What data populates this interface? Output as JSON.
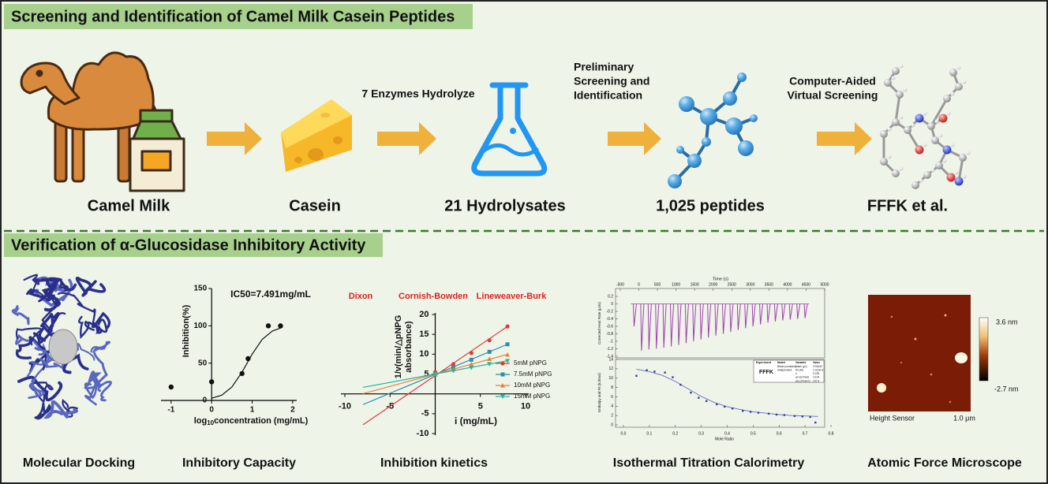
{
  "top": {
    "title": "Screening and Identification of Camel Milk Casein Peptides",
    "steps": [
      "Camel Milk",
      "Casein",
      "21 Hydrolysates",
      "1,025 peptides",
      "FFFK et al."
    ],
    "arrow_labels": [
      [
        "7 Enzymes Hydrolyze"
      ],
      [
        "Preliminary",
        "Screening and",
        "Identification"
      ],
      [
        "Computer-Aided",
        "Virtual Screening"
      ]
    ]
  },
  "bottom": {
    "title": "Verification of α-Glucosidase Inhibitory Activity",
    "panels": [
      "Molecular Docking",
      "Inhibitory Capacity",
      "Inhibition kinetics",
      "Isothermal Titration Calorimetry",
      "Atomic Force Microscope"
    ]
  },
  "inhibition_chart": {
    "type": "scatter",
    "annotation": "IC50=7.491mg/mL",
    "ylabel": "Inhibition(%)",
    "xlabel": [
      "log",
      "10",
      "concentration (mg/mL)"
    ],
    "x": [
      -1,
      0,
      0.75,
      0.9,
      1.4,
      1.7
    ],
    "values": [
      18,
      25,
      36,
      56,
      100,
      100
    ],
    "fit_x": [
      0,
      0.25,
      0.5,
      0.75,
      1,
      1.25,
      1.5,
      1.75
    ],
    "fit_values": [
      3,
      7,
      18,
      38,
      62,
      82,
      93,
      98
    ],
    "color": "#111111",
    "xlim": [
      -1.25,
      2.1
    ],
    "ylim": [
      0,
      150
    ],
    "xticks": [
      -1,
      0,
      1,
      2
    ],
    "yticks": [
      0,
      50,
      100,
      150
    ]
  },
  "kinetics_chart": {
    "type": "line",
    "method_labels": [
      "Dixon",
      "Cornish-Bowden",
      "Lineweaver-Burk"
    ],
    "method_color": "#e02020",
    "ylabel": [
      "1/v(min/△pNPG",
      "absorbance)"
    ],
    "xlabel": "i (mg/mL)",
    "xlim": [
      -10,
      10
    ],
    "ylim": [
      -10,
      20
    ],
    "xticks": [
      -10,
      -5,
      5,
      10
    ],
    "yticks": [
      -10,
      -5,
      5,
      10,
      15,
      20
    ],
    "x": [
      0,
      2,
      4,
      6,
      8
    ],
    "fit_x": [
      -8,
      8
    ],
    "series": [
      {
        "name": "5mM pNPG",
        "color": "#e53935",
        "marker": "circle",
        "values": [
          5.5,
          7.5,
          10.3,
          13.5,
          17
        ],
        "fit_values": [
          -7.8,
          17
        ]
      },
      {
        "name": "7.5mM pNPG",
        "color": "#2a8fb0",
        "marker": "square",
        "values": [
          4.9,
          6.7,
          8.6,
          10.6,
          12.5
        ],
        "fit_values": [
          -2.7,
          12.5
        ]
      },
      {
        "name": "10mM pNPG",
        "color": "#f07e3a",
        "marker": "triangle",
        "values": [
          5,
          6.2,
          7.5,
          8.8,
          9.9
        ],
        "fit_values": [
          0.04,
          9.96
        ]
      },
      {
        "name": "15mM pNPG",
        "color": "#27b59a",
        "marker": "tri-down",
        "values": [
          5,
          5.8,
          6.6,
          7.5,
          8.3
        ],
        "fit_values": [
          1.64,
          8.36
        ]
      }
    ]
  },
  "itc_chart": {
    "type": "line",
    "top": {
      "xlabel": "Time (s)",
      "ylabel": "Corrected Heat Rate (μJ/s)",
      "xlim": [
        -500,
        5000
      ],
      "ylim": [
        -1.4,
        0.2
      ],
      "xticks": [
        -500,
        0,
        500,
        1000,
        1500,
        2000,
        2500,
        3000,
        3500,
        4000,
        4500,
        5000
      ],
      "yticks": [
        0.2,
        0,
        -0.2,
        -0.4,
        -0.6,
        -0.8,
        -1,
        -1.2,
        -1.4
      ],
      "color": "#a040b0",
      "x": [
        -150,
        50,
        250,
        450,
        650,
        850,
        1050,
        1250,
        1450,
        1650,
        1850,
        2050,
        2250,
        2450,
        2650,
        2850,
        3050,
        3250,
        3450,
        3650,
        3850,
        4050,
        4250,
        4450
      ],
      "values": [
        -0.6,
        -1.25,
        -1.22,
        -1.2,
        -1.17,
        -1.14,
        -1.1,
        -1.05,
        -1,
        -0.95,
        -0.9,
        -0.85,
        -0.8,
        -0.75,
        -0.7,
        -0.65,
        -0.6,
        -0.55,
        -0.5,
        -0.47,
        -0.44,
        -0.42,
        -0.4,
        -0.38
      ]
    },
    "bottom": {
      "xlabel": "Mole Ratio",
      "ylabel": "Enthalpy and Fit (kJ/mol)",
      "xlim": [
        0,
        0.8
      ],
      "ylim": [
        0,
        14
      ],
      "xticks": [
        {
          "value": 0,
          "label": "0.0"
        },
        0.1,
        0.2,
        0.3,
        0.4,
        0.5,
        0.6,
        0.7,
        0.8
      ],
      "yticks": [
        0,
        2,
        4,
        6,
        8,
        10,
        12,
        14
      ],
      "point_color": "#3040a0",
      "fit_color": "#6a6ac0",
      "x": [
        0.05,
        0.09,
        0.12,
        0.16,
        0.19,
        0.22,
        0.26,
        0.29,
        0.32,
        0.36,
        0.39,
        0.42,
        0.46,
        0.49,
        0.52,
        0.56,
        0.59,
        0.62,
        0.66,
        0.69,
        0.72,
        0.74
      ],
      "values": [
        10.5,
        11.7,
        11.4,
        11.2,
        10.2,
        8.6,
        6.9,
        5.8,
        5.1,
        4.4,
        3.9,
        3.5,
        3,
        2.8,
        2.6,
        2.4,
        2.2,
        2.1,
        1.9,
        1.8,
        1.7,
        0.5
      ],
      "fit_x": [
        0.05,
        0.1,
        0.15,
        0.2,
        0.25,
        0.3,
        0.35,
        0.4,
        0.45,
        0.5,
        0.55,
        0.6,
        0.65,
        0.7,
        0.75
      ],
      "fit_values": [
        11.9,
        11.4,
        10.6,
        9.3,
        7.7,
        6.1,
        4.8,
        3.9,
        3.3,
        2.8,
        2.5,
        2.2,
        2,
        1.9,
        1.8
      ]
    },
    "table": {
      "sample": "FFFK",
      "header": [
        "Experiment",
        "Model",
        "Variable",
        "Value"
      ],
      "rows": [
        [
          "Blank (constant)",
          "blank (μJ)",
          "3.91632"
        ],
        [
          "Independent",
          "Kd (M)",
          "1.011E-5"
        ],
        [
          "n",
          "0.233"
        ],
        [
          "ΔH (kJ/mol)",
          "13.04"
        ],
        [
          "ΔS (J/mol·K)",
          "137.9"
        ]
      ]
    }
  },
  "afm": {
    "max_label": "3.6 nm",
    "min_label": "-2.7 nm",
    "channel": "Height Sensor",
    "scale": "1.0 μm"
  }
}
